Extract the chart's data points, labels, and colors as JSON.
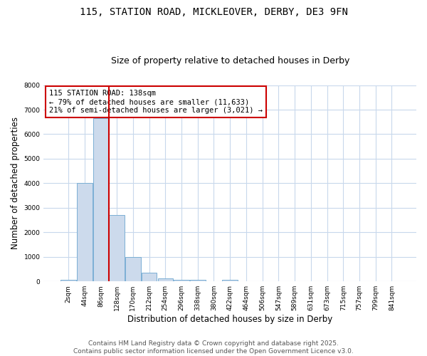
{
  "title_line1": "115, STATION ROAD, MICKLEOVER, DERBY, DE3 9FN",
  "title_line2": "Size of property relative to detached houses in Derby",
  "xlabel": "Distribution of detached houses by size in Derby",
  "ylabel": "Number of detached properties",
  "bar_labels": [
    "2sqm",
    "44sqm",
    "86sqm",
    "128sqm",
    "170sqm",
    "212sqm",
    "254sqm",
    "296sqm",
    "338sqm",
    "380sqm",
    "422sqm",
    "464sqm",
    "506sqm",
    "547sqm",
    "589sqm",
    "631sqm",
    "673sqm",
    "715sqm",
    "757sqm",
    "799sqm",
    "841sqm"
  ],
  "bar_values": [
    75,
    4000,
    6650,
    2700,
    980,
    340,
    130,
    75,
    50,
    0,
    50,
    0,
    0,
    0,
    0,
    0,
    0,
    0,
    0,
    0,
    0
  ],
  "bar_color": "#ccdaec",
  "bar_edge_color": "#7bafd4",
  "red_line_index": 3,
  "red_line_color": "#cc0000",
  "annotation_title": "115 STATION ROAD: 138sqm",
  "annotation_line2": "← 79% of detached houses are smaller (11,633)",
  "annotation_line3": "21% of semi-detached houses are larger (3,021) →",
  "annotation_box_color": "#cc0000",
  "ylim": [
    0,
    8000
  ],
  "yticks": [
    0,
    1000,
    2000,
    3000,
    4000,
    5000,
    6000,
    7000,
    8000
  ],
  "grid_color": "#c8d8ec",
  "bg_color": "#ffffff",
  "plot_bg_color": "#ffffff",
  "footer_line1": "Contains HM Land Registry data © Crown copyright and database right 2025.",
  "footer_line2": "Contains public sector information licensed under the Open Government Licence v3.0.",
  "title_fontsize": 10,
  "subtitle_fontsize": 9,
  "axis_label_fontsize": 8.5,
  "tick_fontsize": 6.5,
  "footer_fontsize": 6.5,
  "annotation_fontsize": 7.5
}
